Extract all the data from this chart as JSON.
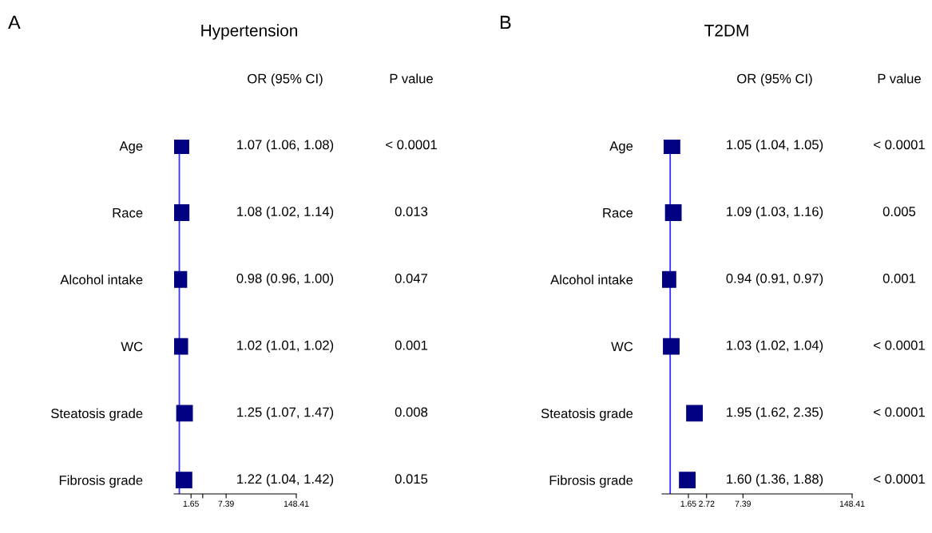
{
  "chart_data": [
    {
      "type": "scatter",
      "orientation": "horizontal",
      "title": "Hypertension",
      "log": "x",
      "marker": "square",
      "grid": false,
      "legend": false,
      "categories": [
        "Age",
        "Race",
        "Alcohol intake",
        "WC",
        "Steatosis grade",
        "Fibrosis grade"
      ],
      "series": [
        {
          "color": "#000080",
          "values": [
            1.07,
            1.08,
            0.98,
            1.02,
            1.25,
            1.22
          ]
        }
      ],
      "xlim": [
        0.8,
        148.41
      ],
      "xticks": [
        1.65,
        {
          "value": 2.72,
          "label": null
        },
        7.39,
        148.41
      ],
      "ref_lines": [
        {
          "axis": "x",
          "value": 1,
          "color": "#3333ff",
          "line_style": "solid"
        }
      ],
      "annotations": [
        "A",
        "OR (95% CI)",
        "P value",
        "1.07 (1.06, 1.08)",
        "1.08 (1.02, 1.14)",
        "0.98 (0.96, 1.00)",
        "1.02 (1.01, 1.02)",
        "1.25 (1.07, 1.47)",
        "1.22 (1.04, 1.42)",
        "< 0.0001",
        "0.013",
        "0.047",
        "0.001",
        "0.008",
        "0.015"
      ]
    },
    {
      "type": "scatter",
      "orientation": "horizontal",
      "title": "T2DM",
      "log": "x",
      "marker": "square",
      "grid": false,
      "legend": false,
      "categories": [
        "Age",
        "Race",
        "Alcohol intake",
        "WC",
        "Steatosis grade",
        "Fibrosis grade"
      ],
      "series": [
        {
          "color": "#000080",
          "values": [
            1.05,
            1.09,
            0.94,
            1.03,
            1.95,
            1.6
          ]
        }
      ],
      "xlim": [
        0.8,
        148.41
      ],
      "xticks": [
        1.65,
        2.72,
        7.39,
        148.41
      ],
      "ref_lines": [
        {
          "axis": "x",
          "value": 1,
          "color": "#3333ff",
          "line_style": "solid"
        }
      ],
      "annotations": [
        "B",
        "OR (95% CI)",
        "P value",
        "1.05 (1.04, 1.05)",
        "1.09 (1.03, 1.16)",
        "0.94 (0.91, 0.97)",
        "1.03 (1.02, 1.04)",
        "1.95 (1.62, 2.35)",
        "1.60 (1.36, 1.88)",
        "< 0.0001",
        "0.005",
        "0.001",
        "< 0.0001",
        "< 0.0001",
        "< 0.0001"
      ]
    }
  ]
}
